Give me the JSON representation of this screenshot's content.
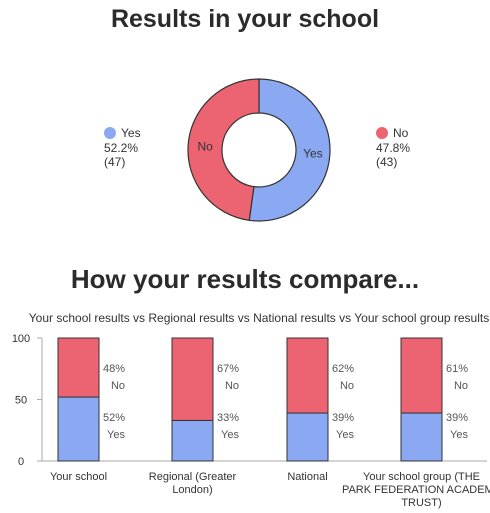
{
  "donut_title": "Results in your school",
  "compare_title": "How your results compare...",
  "colors": {
    "yes": "#8aa9f2",
    "no": "#ec6472",
    "stroke": "#333333",
    "axis": "#aaaaaa"
  },
  "donut": {
    "slices": [
      {
        "label": "Yes",
        "percent": "52.2%",
        "count": "(47)",
        "value": 52.2
      },
      {
        "label": "No",
        "percent": "47.8%",
        "count": "(43)",
        "value": 47.8
      }
    ]
  },
  "chart_data": [
    {
      "type": "pie",
      "title": "Results in your school",
      "categories": [
        "Yes",
        "No"
      ],
      "values": [
        52.2,
        47.8
      ],
      "counts": [
        47,
        43
      ]
    },
    {
      "type": "bar",
      "stacked": true,
      "title": "Your school results vs Regional results vs National results vs Your school group results",
      "categories": [
        "Your school",
        "Regional (Greater London)",
        "National",
        "Your school group (THE PARK FEDERATION ACADEMY TRUST)"
      ],
      "series": [
        {
          "name": "Yes",
          "values": [
            52,
            33,
            39,
            39
          ],
          "labels": [
            "52%",
            "33%",
            "39%",
            "39%"
          ]
        },
        {
          "name": "No",
          "values": [
            48,
            67,
            62,
            61
          ],
          "labels": [
            "48%",
            "67%",
            "62%",
            "61%"
          ]
        }
      ],
      "yticks": [
        "0",
        "50",
        "100"
      ],
      "ylim": [
        0,
        100
      ],
      "grid": false
    }
  ]
}
